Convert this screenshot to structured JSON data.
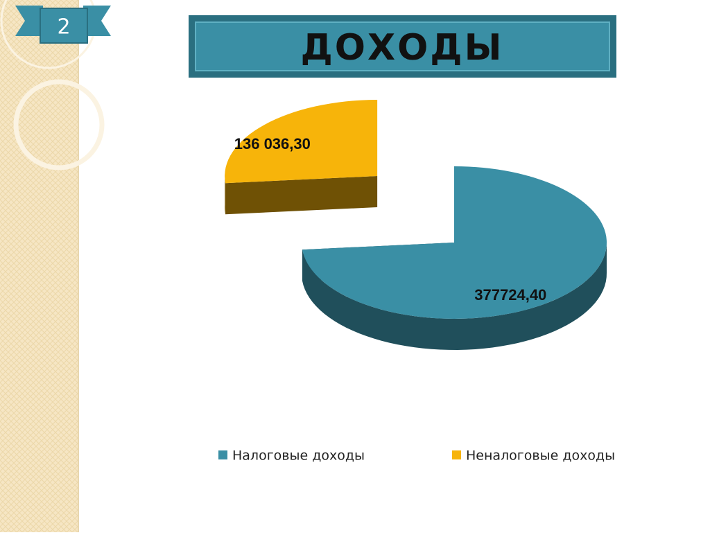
{
  "slide_number": 2,
  "chart_data": {
    "type": "pie",
    "title": "ДОХОДЫ",
    "categories": [
      "Налоговые доходы",
      "Неналоговые доходы"
    ],
    "values": [
      377724.4,
      136036.3
    ],
    "value_labels": [
      "377724,40",
      "136 036,30"
    ],
    "colors": [
      "#3a8fa5",
      "#f7b40a"
    ],
    "exploded": [
      false,
      true
    ],
    "legend": "bottom"
  }
}
